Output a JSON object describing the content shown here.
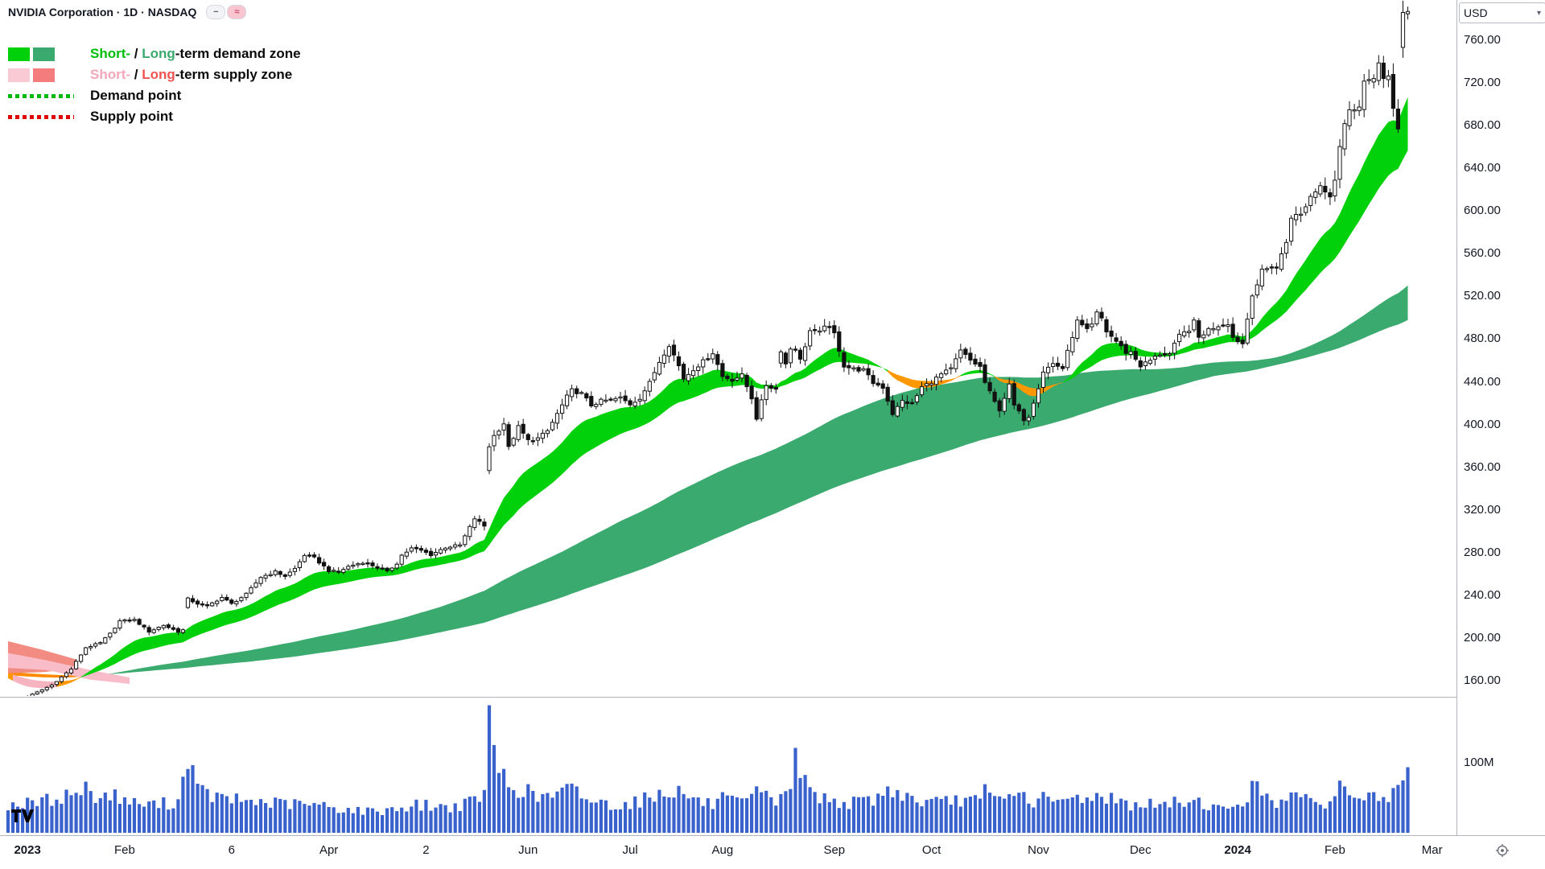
{
  "header": {
    "title": "NVIDIA Corporation · 1D · NASDAQ",
    "indicator_chips": [
      {
        "name": "indicator-chip-collapsed",
        "glyph": "−",
        "bg": "#F2F3F5",
        "fg": "#5A5E6B"
      },
      {
        "name": "indicator-chip-supply-demand",
        "glyph": "≈",
        "bg": "#F9C6D0",
        "fg": "#C94F6D"
      }
    ]
  },
  "legend": {
    "items": [
      {
        "type": "zones",
        "swatches": [
          "#00D10A",
          "#3BAA6E"
        ],
        "segments": [
          {
            "t": "Short-",
            "c": "#00BE09"
          },
          {
            "t": " / ",
            "c": "#0B0B0B"
          },
          {
            "t": "Long",
            "c": "#3BAA6E"
          },
          {
            "t": "-term demand zone",
            "c": "#0B0B0B"
          }
        ]
      },
      {
        "type": "zones",
        "swatches": [
          "#F9C9D4",
          "#F47C7C"
        ],
        "segments": [
          {
            "t": "Short-",
            "c": "#F4A7B9"
          },
          {
            "t": " / ",
            "c": "#0B0B0B"
          },
          {
            "t": "Long",
            "c": "#EF5350"
          },
          {
            "t": "-term supply zone",
            "c": "#0B0B0B"
          }
        ]
      },
      {
        "type": "dotted",
        "color": "#00B807",
        "segments": [
          {
            "t": "Demand point",
            "c": "#0B0B0B"
          }
        ]
      },
      {
        "type": "dotted",
        "color": "#E00000",
        "segments": [
          {
            "t": "Supply point",
            "c": "#0B0B0B"
          }
        ]
      }
    ]
  },
  "chart_data": {
    "type": "candlestick",
    "symbol": "NVIDIA Corporation",
    "interval": "1D",
    "exchange": "NASDAQ",
    "currency": "USD",
    "days": 289,
    "ylim": [
      143,
      797
    ],
    "y_ticks": [
      760,
      720,
      680,
      640,
      600,
      560,
      520,
      480,
      440,
      400,
      360,
      320,
      280,
      240,
      200,
      160
    ],
    "x_ticks": [
      {
        "d": 4,
        "label": "2023",
        "bold": true
      },
      {
        "d": 24,
        "label": "Feb",
        "bold": false
      },
      {
        "d": 46,
        "label": "6",
        "bold": false
      },
      {
        "d": 66,
        "label": "Apr",
        "bold": false
      },
      {
        "d": 86,
        "label": "2",
        "bold": false
      },
      {
        "d": 107,
        "label": "Jun",
        "bold": false
      },
      {
        "d": 128,
        "label": "Jul",
        "bold": false
      },
      {
        "d": 147,
        "label": "Aug",
        "bold": false
      },
      {
        "d": 170,
        "label": "Sep",
        "bold": false
      },
      {
        "d": 190,
        "label": "Oct",
        "bold": false
      },
      {
        "d": 212,
        "label": "Nov",
        "bold": false
      },
      {
        "d": 233,
        "label": "Dec",
        "bold": false
      },
      {
        "d": 253,
        "label": "2024",
        "bold": true
      },
      {
        "d": 273,
        "label": "Feb",
        "bold": false
      },
      {
        "d": 293,
        "label": "Mar",
        "bold": false
      }
    ],
    "volume_tick": {
      "label": "100M",
      "value_m": 100
    },
    "volume_color": "#3A62CC",
    "candle": {
      "up_fill": "#FFFFFF",
      "down_fill": "#111111",
      "stroke": "#111111"
    },
    "bands": {
      "short": {
        "fast": 16,
        "slow": 32,
        "colors": {
          "up": "#00D10A",
          "flat": "#FF9800",
          "down": "#F6B3C0"
        }
      },
      "long": {
        "fast": 90,
        "slow": 150,
        "colors": {
          "up": "#3BAA6E",
          "down": "#FF8A00"
        }
      }
    },
    "explicit_zones": [
      {
        "color": "#F28B82",
        "upper": [
          [
            0,
            197
          ],
          [
            7,
            189
          ],
          [
            14,
            180
          ]
        ],
        "lower": [
          [
            0,
            167
          ],
          [
            7,
            168
          ],
          [
            14,
            171
          ]
        ]
      },
      {
        "color": "#F9BDC9",
        "upper": [
          [
            0,
            186
          ],
          [
            8,
            179
          ],
          [
            17,
            170
          ],
          [
            25,
            163
          ]
        ],
        "lower": [
          [
            0,
            172
          ],
          [
            8,
            170
          ],
          [
            17,
            161
          ],
          [
            25,
            157
          ]
        ]
      }
    ],
    "prehistory_anchors": [
      [
        -150,
        208
      ],
      [
        -120,
        148
      ],
      [
        -95,
        186
      ],
      [
        -62,
        138
      ],
      [
        -40,
        177
      ],
      [
        -25,
        188
      ],
      [
        -12,
        170
      ],
      [
        -1,
        156
      ]
    ],
    "close_anchors": [
      [
        0,
        143
      ],
      [
        2,
        140.5
      ],
      [
        5,
        147
      ],
      [
        9,
        156
      ],
      [
        13,
        171
      ],
      [
        16,
        191
      ],
      [
        19,
        195.4
      ],
      [
        21,
        204
      ],
      [
        23,
        216
      ],
      [
        26,
        217
      ],
      [
        29,
        206
      ],
      [
        32,
        212
      ],
      [
        35,
        206
      ],
      [
        36,
        207.5
      ],
      [
        37,
        236.7
      ],
      [
        39,
        232.2
      ],
      [
        41,
        230
      ],
      [
        44,
        238
      ],
      [
        46,
        232
      ],
      [
        49,
        241
      ],
      [
        52,
        257
      ],
      [
        55,
        262
      ],
      [
        57,
        258
      ],
      [
        59,
        265
      ],
      [
        61,
        277.8
      ],
      [
        63,
        275
      ],
      [
        66,
        263
      ],
      [
        68,
        262
      ],
      [
        70,
        267
      ],
      [
        73,
        271
      ],
      [
        75,
        268
      ],
      [
        78,
        262
      ],
      [
        80,
        270
      ],
      [
        81,
        277.5
      ],
      [
        83,
        284
      ],
      [
        85,
        282
      ],
      [
        87,
        278
      ],
      [
        90,
        285
      ],
      [
        93,
        287
      ],
      [
        96,
        312
      ],
      [
        98,
        305
      ],
      [
        99,
        379.8
      ],
      [
        100,
        389.5
      ],
      [
        102,
        401.1
      ],
      [
        103,
        378.3
      ],
      [
        105,
        397.7
      ],
      [
        107,
        385
      ],
      [
        109,
        387
      ],
      [
        111,
        394
      ],
      [
        113,
        410
      ],
      [
        115,
        426
      ],
      [
        116,
        432
      ],
      [
        118,
        429
      ],
      [
        120,
        418
      ],
      [
        122,
        422
      ],
      [
        124,
        423
      ],
      [
        126,
        425
      ],
      [
        128,
        419
      ],
      [
        130,
        425
      ],
      [
        132,
        439
      ],
      [
        134,
        459
      ],
      [
        136,
        474.9
      ],
      [
        138,
        455
      ],
      [
        139,
        443
      ],
      [
        141,
        452
      ],
      [
        143,
        459
      ],
      [
        145,
        467.3
      ],
      [
        147,
        445
      ],
      [
        149,
        442
      ],
      [
        151,
        446
      ],
      [
        153,
        425
      ],
      [
        154,
        406
      ],
      [
        156,
        437
      ],
      [
        158,
        433
      ],
      [
        159,
        469.7
      ],
      [
        160,
        456.7
      ],
      [
        161,
        471.2
      ],
      [
        162,
        471.6
      ],
      [
        163,
        460.2
      ],
      [
        165,
        487.8
      ],
      [
        167,
        486
      ],
      [
        168,
        493.6
      ],
      [
        170,
        485
      ],
      [
        172,
        455
      ],
      [
        174,
        452
      ],
      [
        176,
        451
      ],
      [
        178,
        439
      ],
      [
        180,
        435
      ],
      [
        182,
        410.2
      ],
      [
        184,
        422
      ],
      [
        186,
        419
      ],
      [
        188,
        435
      ],
      [
        190,
        440
      ],
      [
        192,
        447
      ],
      [
        194,
        452
      ],
      [
        196,
        469
      ],
      [
        198,
        460
      ],
      [
        200,
        454
      ],
      [
        201,
        439.4
      ],
      [
        203,
        421
      ],
      [
        204,
        414
      ],
      [
        206,
        436.6
      ],
      [
        207,
        417.8
      ],
      [
        209,
        405
      ],
      [
        210,
        407.8
      ],
      [
        212,
        435
      ],
      [
        213,
        450
      ],
      [
        215,
        457
      ],
      [
        217,
        452.7
      ],
      [
        219,
        483
      ],
      [
        220,
        496.6
      ],
      [
        222,
        488
      ],
      [
        223,
        493
      ],
      [
        224,
        504.1
      ],
      [
        225,
        499.4
      ],
      [
        226,
        487.2
      ],
      [
        228,
        478
      ],
      [
        230,
        467.7
      ],
      [
        231,
        468
      ],
      [
        233,
        455
      ],
      [
        235,
        460
      ],
      [
        237,
        466
      ],
      [
        239,
        466
      ],
      [
        241,
        483
      ],
      [
        243,
        489
      ],
      [
        244,
        496
      ],
      [
        245,
        481.4
      ],
      [
        247,
        489
      ],
      [
        249,
        492.8
      ],
      [
        251,
        495.2
      ],
      [
        252,
        481.7
      ],
      [
        254,
        475.7
      ],
      [
        256,
        522.5
      ],
      [
        257,
        531.4
      ],
      [
        258,
        543.5
      ],
      [
        260,
        548
      ],
      [
        261,
        547.1
      ],
      [
        263,
        571
      ],
      [
        264,
        594.9
      ],
      [
        266,
        596.5
      ],
      [
        268,
        613.6
      ],
      [
        270,
        624
      ],
      [
        272,
        615.3
      ],
      [
        273,
        630
      ],
      [
        274,
        661.6
      ],
      [
        275,
        682
      ],
      [
        276,
        693.3
      ],
      [
        278,
        700
      ],
      [
        279,
        721.3
      ],
      [
        280,
        722.5
      ],
      [
        281,
        721.3
      ],
      [
        282,
        739
      ],
      [
        283,
        726.6
      ],
      [
        284,
        726.1
      ],
      [
        285,
        694.5
      ],
      [
        286,
        674.7
      ],
      [
        287,
        785.4
      ],
      [
        288,
        788.2
      ]
    ],
    "volume_anchors_m": [
      [
        0,
        40
      ],
      [
        5,
        42
      ],
      [
        10,
        49
      ],
      [
        14,
        58
      ],
      [
        16,
        62
      ],
      [
        19,
        50
      ],
      [
        21,
        55
      ],
      [
        26,
        42
      ],
      [
        30,
        40
      ],
      [
        35,
        44
      ],
      [
        37,
        115
      ],
      [
        39,
        60
      ],
      [
        44,
        48
      ],
      [
        50,
        45
      ],
      [
        55,
        42
      ],
      [
        61,
        40
      ],
      [
        65,
        38
      ],
      [
        70,
        33
      ],
      [
        75,
        30
      ],
      [
        81,
        36
      ],
      [
        85,
        40
      ],
      [
        90,
        36
      ],
      [
        95,
        42
      ],
      [
        98,
        58
      ],
      [
        99,
        153
      ],
      [
        100,
        118
      ],
      [
        101,
        92
      ],
      [
        103,
        68
      ],
      [
        105,
        64
      ],
      [
        109,
        50
      ],
      [
        113,
        54
      ],
      [
        116,
        62
      ],
      [
        120,
        46
      ],
      [
        124,
        40
      ],
      [
        128,
        42
      ],
      [
        132,
        50
      ],
      [
        136,
        62
      ],
      [
        139,
        56
      ],
      [
        143,
        42
      ],
      [
        145,
        40
      ],
      [
        147,
        48
      ],
      [
        151,
        40
      ],
      [
        154,
        56
      ],
      [
        158,
        44
      ],
      [
        159,
        60
      ],
      [
        161,
        64
      ],
      [
        162,
        103
      ],
      [
        163,
        88
      ],
      [
        165,
        60
      ],
      [
        168,
        48
      ],
      [
        170,
        46
      ],
      [
        174,
        42
      ],
      [
        178,
        48
      ],
      [
        182,
        62
      ],
      [
        186,
        48
      ],
      [
        188,
        44
      ],
      [
        192,
        42
      ],
      [
        196,
        48
      ],
      [
        200,
        44
      ],
      [
        201,
        58
      ],
      [
        204,
        46
      ],
      [
        206,
        52
      ],
      [
        207,
        64
      ],
      [
        209,
        50
      ],
      [
        210,
        44
      ],
      [
        213,
        48
      ],
      [
        217,
        42
      ],
      [
        220,
        52
      ],
      [
        224,
        50
      ],
      [
        225,
        60
      ],
      [
        226,
        52
      ],
      [
        230,
        40
      ],
      [
        233,
        42
      ],
      [
        237,
        38
      ],
      [
        241,
        44
      ],
      [
        244,
        46
      ],
      [
        247,
        40
      ],
      [
        251,
        30
      ],
      [
        252,
        40
      ],
      [
        254,
        44
      ],
      [
        256,
        64
      ],
      [
        258,
        58
      ],
      [
        261,
        44
      ],
      [
        264,
        60
      ],
      [
        266,
        42
      ],
      [
        268,
        48
      ],
      [
        270,
        44
      ],
      [
        272,
        42
      ],
      [
        273,
        52
      ],
      [
        274,
        66
      ],
      [
        276,
        56
      ],
      [
        279,
        52
      ],
      [
        280,
        48
      ],
      [
        282,
        54
      ],
      [
        284,
        44
      ],
      [
        285,
        52
      ],
      [
        286,
        56
      ],
      [
        287,
        86
      ],
      [
        288,
        82
      ]
    ]
  }
}
